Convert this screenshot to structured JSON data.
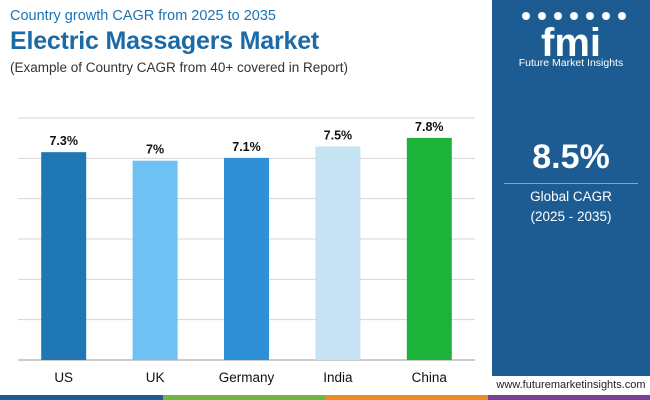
{
  "header": {
    "eyebrow": "Country growth CAGR from 2025 to 2035",
    "title": "Electric Massagers Market",
    "subtitle": "(Example of Country CAGR from 40+ covered in Report)"
  },
  "chart_data": {
    "type": "bar",
    "categories": [
      "US",
      "UK",
      "Germany",
      "India",
      "China"
    ],
    "values": [
      7.3,
      7.0,
      7.1,
      7.5,
      7.8
    ],
    "data_labels": [
      "7.3%",
      "7%",
      "7.1%",
      "7.5%",
      "7.8%"
    ],
    "colors": [
      "#1f77b4",
      "#6ec1f2",
      "#2f90d8",
      "#c5e3f3",
      "#1db33a"
    ],
    "title": "",
    "xlabel": "",
    "ylabel": "",
    "ylim": [
      0,
      8.5
    ],
    "grid": true,
    "legend": "none"
  },
  "side_panel": {
    "logo_text": "fmi",
    "logo_name": "Future Market Insights",
    "kpi_value": "8.5%",
    "kpi_label_line1": "Global CAGR",
    "kpi_label_line2": "(2025 - 2035)",
    "background": "#1d5c92"
  },
  "footer": {
    "website": "www.futuremarketinsights.com",
    "bar_colors": [
      "#1e5d93",
      "#6fb83f",
      "#f08a24",
      "#7b3f98"
    ]
  }
}
